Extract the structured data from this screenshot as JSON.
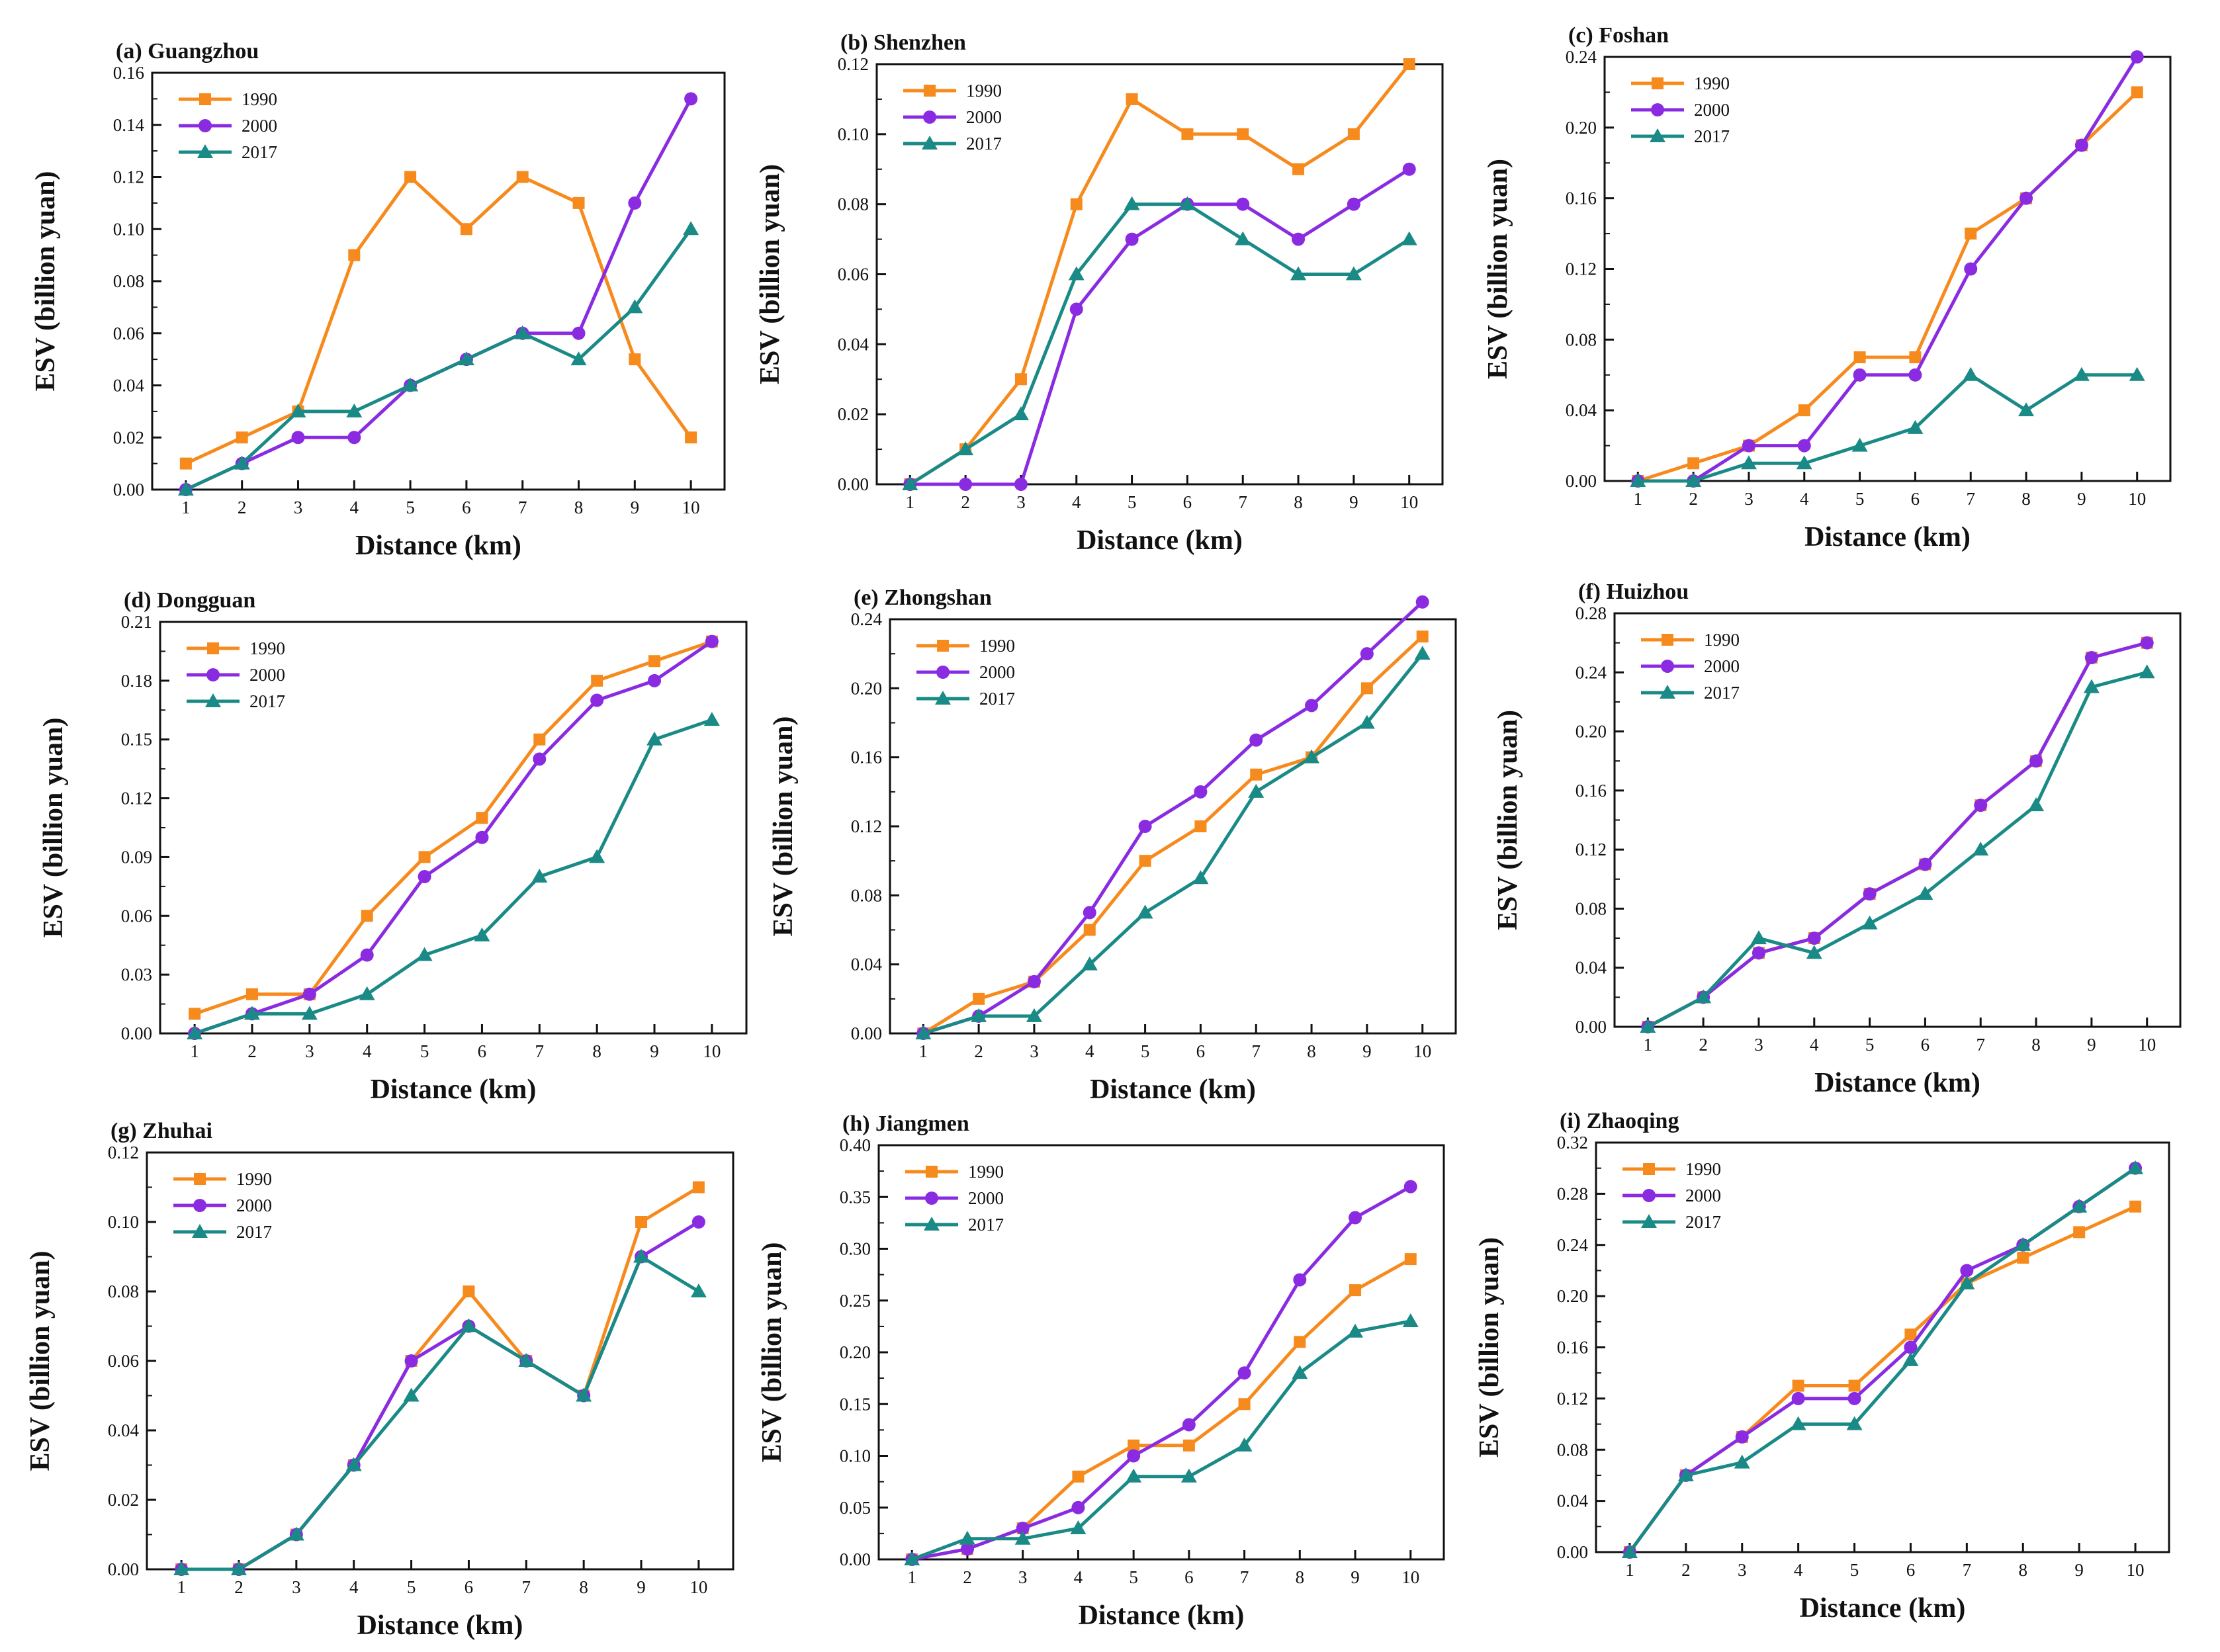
{
  "figure": {
    "series_names": [
      "1990",
      "2000",
      "2017"
    ],
    "colors": {
      "1990": "#f78a1d",
      "2000": "#8a2be2",
      "2017": "#1a8a86"
    },
    "markers": {
      "1990": "square",
      "2000": "circle",
      "2017": "triangle"
    }
  },
  "chart_data": [
    {
      "type": "line",
      "title": "(a) Guangzhou",
      "xlabel": "Distance (km)",
      "ylabel": "ESV (billion yuan)",
      "x": [
        1,
        2,
        3,
        4,
        5,
        6,
        7,
        8,
        9,
        10
      ],
      "xticks": [
        "1",
        "2",
        "3",
        "4",
        "5",
        "6",
        "7",
        "8",
        "9",
        "10"
      ],
      "ylim": [
        0,
        0.16
      ],
      "yticks": [
        "0.00",
        "0.02",
        "0.04",
        "0.06",
        "0.08",
        "0.10",
        "0.12",
        "0.14",
        "0.16"
      ],
      "series": [
        {
          "name": "1990",
          "values": [
            0.01,
            0.02,
            0.03,
            0.09,
            0.12,
            0.1,
            0.12,
            0.11,
            0.05,
            0.02
          ]
        },
        {
          "name": "2000",
          "values": [
            0.0,
            0.01,
            0.02,
            0.02,
            0.04,
            0.05,
            0.06,
            0.06,
            0.11,
            0.15
          ]
        },
        {
          "name": "2017",
          "values": [
            0.0,
            0.01,
            0.03,
            0.03,
            0.04,
            0.05,
            0.06,
            0.05,
            0.07,
            0.1
          ]
        }
      ]
    },
    {
      "type": "line",
      "title": "(b) Shenzhen",
      "xlabel": "Distance (km)",
      "ylabel": "ESV (billion yuan)",
      "x": [
        1,
        2,
        3,
        4,
        5,
        6,
        7,
        8,
        9,
        10
      ],
      "xticks": [
        "1",
        "2",
        "3",
        "4",
        "5",
        "6",
        "7",
        "8",
        "9",
        "10"
      ],
      "ylim": [
        0,
        0.12
      ],
      "yticks": [
        "0.00",
        "0.02",
        "0.04",
        "0.06",
        "0.08",
        "0.10",
        "0.12"
      ],
      "series": [
        {
          "name": "1990",
          "values": [
            0.0,
            0.01,
            0.03,
            0.08,
            0.11,
            0.1,
            0.1,
            0.09,
            0.1,
            0.12
          ]
        },
        {
          "name": "2000",
          "values": [
            0.0,
            0.0,
            0.0,
            0.05,
            0.07,
            0.08,
            0.08,
            0.07,
            0.08,
            0.09
          ]
        },
        {
          "name": "2017",
          "values": [
            0.0,
            0.01,
            0.02,
            0.06,
            0.08,
            0.08,
            0.07,
            0.06,
            0.06,
            0.07
          ]
        }
      ]
    },
    {
      "type": "line",
      "title": "(c) Foshan",
      "xlabel": "Distance (km)",
      "ylabel": "ESV (billion yuan)",
      "x": [
        1,
        2,
        3,
        4,
        5,
        6,
        7,
        8,
        9,
        10
      ],
      "xticks": [
        "1",
        "2",
        "3",
        "4",
        "5",
        "6",
        "7",
        "8",
        "9",
        "10"
      ],
      "ylim": [
        0,
        0.24
      ],
      "yticks": [
        "0.00",
        "0.04",
        "0.08",
        "0.12",
        "0.16",
        "0.20",
        "0.24"
      ],
      "series": [
        {
          "name": "1990",
          "values": [
            0.0,
            0.01,
            0.02,
            0.04,
            0.07,
            0.07,
            0.14,
            0.16,
            0.19,
            0.22
          ]
        },
        {
          "name": "2000",
          "values": [
            0.0,
            0.0,
            0.02,
            0.02,
            0.06,
            0.06,
            0.12,
            0.16,
            0.19,
            0.24
          ]
        },
        {
          "name": "2017",
          "values": [
            0.0,
            0.0,
            0.01,
            0.01,
            0.02,
            0.03,
            0.06,
            0.04,
            0.06,
            0.06
          ]
        }
      ]
    },
    {
      "type": "line",
      "title": "(d) Dongguan",
      "xlabel": "Distance (km)",
      "ylabel": "ESV (billion yuan)",
      "x": [
        1,
        2,
        3,
        4,
        5,
        6,
        7,
        8,
        9,
        10
      ],
      "xticks": [
        "1",
        "2",
        "3",
        "4",
        "5",
        "6",
        "7",
        "8",
        "9",
        "10"
      ],
      "ylim": [
        0,
        0.21
      ],
      "yticks": [
        "0.00",
        "0.03",
        "0.06",
        "0.09",
        "0.12",
        "0.15",
        "0.18",
        "0.21"
      ],
      "series": [
        {
          "name": "1990",
          "values": [
            0.01,
            0.02,
            0.02,
            0.06,
            0.09,
            0.11,
            0.15,
            0.18,
            0.19,
            0.2
          ]
        },
        {
          "name": "2000",
          "values": [
            0.0,
            0.01,
            0.02,
            0.04,
            0.08,
            0.1,
            0.14,
            0.17,
            0.18,
            0.2
          ]
        },
        {
          "name": "2017",
          "values": [
            0.0,
            0.01,
            0.01,
            0.02,
            0.04,
            0.05,
            0.08,
            0.09,
            0.15,
            0.16
          ]
        }
      ]
    },
    {
      "type": "line",
      "title": "(e) Zhongshan",
      "xlabel": "Distance (km)",
      "ylabel": "ESV (billion yuan)",
      "x": [
        1,
        2,
        3,
        4,
        5,
        6,
        7,
        8,
        9,
        10
      ],
      "xticks": [
        "1",
        "2",
        "3",
        "4",
        "5",
        "6",
        "7",
        "8",
        "9",
        "10"
      ],
      "ylim": [
        0,
        0.24
      ],
      "yticks": [
        "0.00",
        "0.04",
        "0.08",
        "0.12",
        "0.16",
        "0.20",
        "0.24"
      ],
      "series": [
        {
          "name": "1990",
          "values": [
            0.0,
            0.02,
            0.03,
            0.06,
            0.1,
            0.12,
            0.15,
            0.16,
            0.2,
            0.23
          ]
        },
        {
          "name": "2000",
          "values": [
            0.0,
            0.01,
            0.03,
            0.07,
            0.12,
            0.14,
            0.17,
            0.19,
            0.22,
            0.25
          ]
        },
        {
          "name": "2017",
          "values": [
            0.0,
            0.01,
            0.01,
            0.04,
            0.07,
            0.09,
            0.14,
            0.16,
            0.18,
            0.22
          ]
        }
      ]
    },
    {
      "type": "line",
      "title": "(f) Huizhou",
      "xlabel": "Distance (km)",
      "ylabel": "ESV (billion yuan)",
      "x": [
        1,
        2,
        3,
        4,
        5,
        6,
        7,
        8,
        9,
        10
      ],
      "xticks": [
        "1",
        "2",
        "3",
        "4",
        "5",
        "6",
        "7",
        "8",
        "9",
        "10"
      ],
      "ylim": [
        0,
        0.28
      ],
      "yticks": [
        "0.00",
        "0.04",
        "0.08",
        "0.12",
        "0.16",
        "0.20",
        "0.24",
        "0.28"
      ],
      "series": [
        {
          "name": "1990",
          "values": [
            0.0,
            0.02,
            0.05,
            0.06,
            0.09,
            0.11,
            0.15,
            0.18,
            0.25,
            0.26
          ]
        },
        {
          "name": "2000",
          "values": [
            0.0,
            0.02,
            0.05,
            0.06,
            0.09,
            0.11,
            0.15,
            0.18,
            0.25,
            0.26
          ]
        },
        {
          "name": "2017",
          "values": [
            0.0,
            0.02,
            0.06,
            0.05,
            0.07,
            0.09,
            0.12,
            0.15,
            0.23,
            0.24
          ]
        }
      ]
    },
    {
      "type": "line",
      "title": "(g) Zhuhai",
      "xlabel": "Distance (km)",
      "ylabel": "ESV (billion yuan)",
      "x": [
        1,
        2,
        3,
        4,
        5,
        6,
        7,
        8,
        9,
        10
      ],
      "xticks": [
        "1",
        "2",
        "3",
        "4",
        "5",
        "6",
        "7",
        "8",
        "9",
        "10"
      ],
      "ylim": [
        0,
        0.12
      ],
      "yticks": [
        "0.00",
        "0.02",
        "0.04",
        "0.06",
        "0.08",
        "0.10",
        "0.12"
      ],
      "series": [
        {
          "name": "1990",
          "values": [
            0.0,
            0.0,
            0.01,
            0.03,
            0.06,
            0.08,
            0.06,
            0.05,
            0.1,
            0.11
          ]
        },
        {
          "name": "2000",
          "values": [
            0.0,
            0.0,
            0.01,
            0.03,
            0.06,
            0.07,
            0.06,
            0.05,
            0.09,
            0.1
          ]
        },
        {
          "name": "2017",
          "values": [
            0.0,
            0.0,
            0.01,
            0.03,
            0.05,
            0.07,
            0.06,
            0.05,
            0.09,
            0.08
          ]
        }
      ]
    },
    {
      "type": "line",
      "title": "(h) Jiangmen",
      "xlabel": "Distance (km)",
      "ylabel": "ESV (billion yuan)",
      "x": [
        1,
        2,
        3,
        4,
        5,
        6,
        7,
        8,
        9,
        10
      ],
      "xticks": [
        "1",
        "2",
        "3",
        "4",
        "5",
        "6",
        "7",
        "8",
        "9",
        "10"
      ],
      "ylim": [
        0,
        0.4
      ],
      "yticks": [
        "0.00",
        "0.05",
        "0.10",
        "0.15",
        "0.20",
        "0.25",
        "0.30",
        "0.35",
        "0.40"
      ],
      "series": [
        {
          "name": "1990",
          "values": [
            0.0,
            0.01,
            0.03,
            0.08,
            0.11,
            0.11,
            0.15,
            0.21,
            0.26,
            0.29
          ]
        },
        {
          "name": "2000",
          "values": [
            0.0,
            0.01,
            0.03,
            0.05,
            0.1,
            0.13,
            0.18,
            0.27,
            0.33,
            0.36
          ]
        },
        {
          "name": "2017",
          "values": [
            0.0,
            0.02,
            0.02,
            0.03,
            0.08,
            0.08,
            0.11,
            0.18,
            0.22,
            0.23
          ]
        }
      ]
    },
    {
      "type": "line",
      "title": "(i) Zhaoqing",
      "xlabel": "Distance (km)",
      "ylabel": "ESV (billion yuan)",
      "x": [
        1,
        2,
        3,
        4,
        5,
        6,
        7,
        8,
        9,
        10
      ],
      "xticks": [
        "1",
        "2",
        "3",
        "4",
        "5",
        "6",
        "7",
        "8",
        "9",
        "10"
      ],
      "ylim": [
        0,
        0.32
      ],
      "yticks": [
        "0.00",
        "0.04",
        "0.08",
        "0.12",
        "0.16",
        "0.20",
        "0.24",
        "0.28",
        "0.32"
      ],
      "series": [
        {
          "name": "1990",
          "values": [
            0.0,
            0.06,
            0.09,
            0.13,
            0.13,
            0.17,
            0.21,
            0.23,
            0.25,
            0.27
          ]
        },
        {
          "name": "2000",
          "values": [
            0.0,
            0.06,
            0.09,
            0.12,
            0.12,
            0.16,
            0.22,
            0.24,
            0.27,
            0.3
          ]
        },
        {
          "name": "2017",
          "values": [
            0.0,
            0.06,
            0.07,
            0.1,
            0.1,
            0.15,
            0.21,
            0.24,
            0.27,
            0.3
          ]
        }
      ]
    }
  ]
}
